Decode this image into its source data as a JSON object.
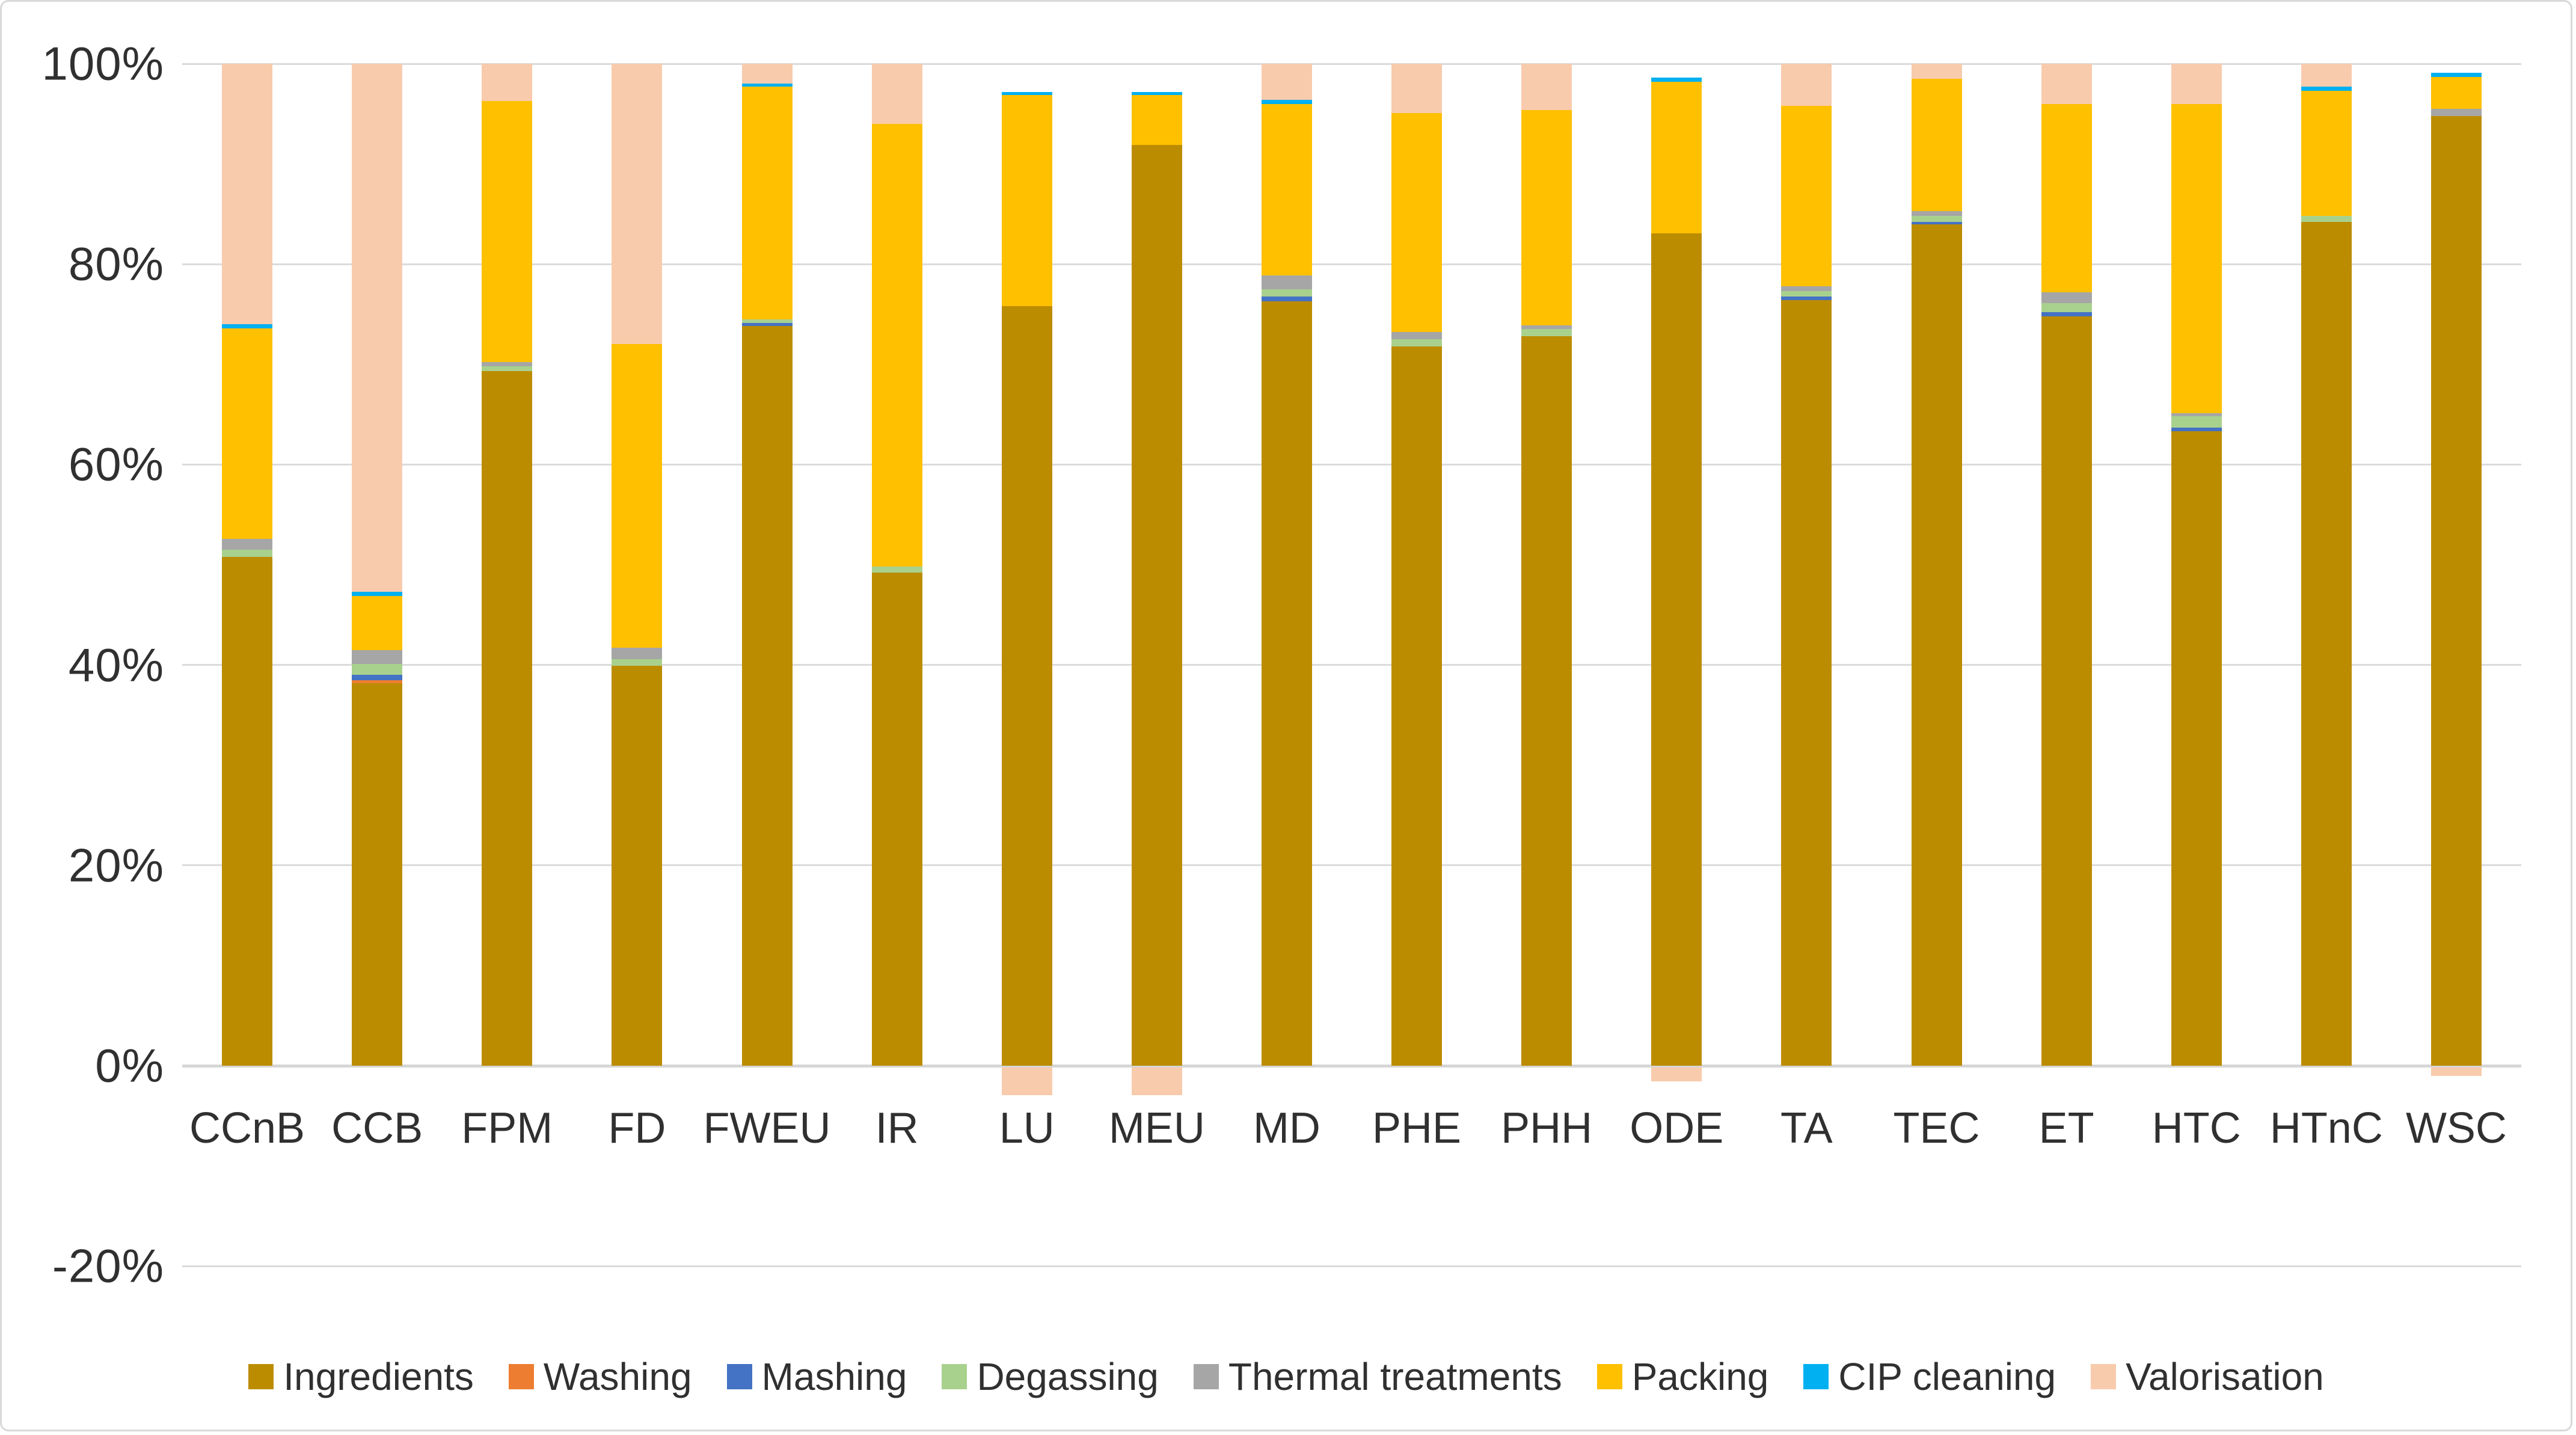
{
  "chart_data": {
    "type": "bar",
    "subtype": "100-percent-stacked-column",
    "title": "",
    "xlabel": "",
    "ylabel": "",
    "grid": true,
    "legend_position": "bottom",
    "categories": [
      "CCnB",
      "CCB",
      "FPM",
      "FD",
      "FWEU",
      "IR",
      "LU",
      "MEU",
      "MD",
      "PHE",
      "PHH",
      "ODE",
      "TA",
      "TEC",
      "ET",
      "HTC",
      "HTnC",
      "WSC"
    ],
    "series": [
      {
        "name": "Ingredients",
        "color": "#BC8C00",
        "values": [
          50.8,
          38.2,
          69.3,
          39.9,
          73.8,
          49.2,
          75.8,
          91.9,
          76.3,
          71.8,
          72.8,
          83.1,
          76.4,
          84.0,
          74.8,
          63.3,
          84.2,
          94.8
        ]
      },
      {
        "name": "Washing",
        "color": "#ED7D31",
        "values": [
          0,
          0.3,
          0,
          0,
          0,
          0,
          0,
          0,
          0,
          0,
          0,
          0,
          0,
          0,
          0,
          0,
          0,
          0
        ]
      },
      {
        "name": "Mashing",
        "color": "#4472C4",
        "values": [
          0,
          0.5,
          0,
          0,
          0.3,
          0,
          0,
          0,
          0.5,
          0,
          0,
          0,
          0.4,
          0.2,
          0.4,
          0.4,
          0,
          0
        ]
      },
      {
        "name": "Degassing",
        "color": "#A9D18E",
        "values": [
          0.7,
          1.1,
          0.5,
          0.7,
          0.4,
          0.6,
          0,
          0,
          0.7,
          0.7,
          0.7,
          0,
          0.5,
          0.6,
          0.9,
          1.1,
          0.6,
          0
        ]
      },
      {
        "name": "Thermal treatments",
        "color": "#A6A6A6",
        "values": [
          1.1,
          1.4,
          0.4,
          1.1,
          0,
          0,
          0,
          0,
          1.4,
          0.7,
          0.4,
          0,
          0.5,
          0.5,
          1.1,
          0.3,
          0,
          0.7
        ]
      },
      {
        "name": "Packing",
        "color": "#FFC000",
        "values": [
          21.0,
          5.4,
          26.1,
          30.3,
          23.2,
          44.2,
          21.1,
          5.0,
          17.1,
          21.9,
          21.5,
          15.1,
          18.0,
          13.2,
          18.8,
          30.9,
          12.5,
          3.2
        ]
      },
      {
        "name": "CIP cleaning",
        "color": "#00B0F0",
        "values": [
          0.4,
          0.4,
          0,
          0,
          0.3,
          0,
          0.3,
          0.3,
          0.4,
          0,
          0,
          0.4,
          0,
          0,
          0,
          0,
          0.4,
          0.4
        ]
      },
      {
        "name": "Valorisation",
        "color": "#F8CBAD",
        "values": [
          26.0,
          52.7,
          3.7,
          28.0,
          2.0,
          6.0,
          -2.8,
          -2.8,
          3.6,
          4.9,
          4.6,
          -1.4,
          4.2,
          1.5,
          4.0,
          4.0,
          2.3,
          -0.9
        ]
      }
    ],
    "y_axis": {
      "unit": "%",
      "ylim": [
        -20,
        100
      ],
      "ticks": [
        100,
        80,
        60,
        40,
        20,
        0,
        -20
      ],
      "tick_labels": [
        "100%",
        "80%",
        "60%",
        "40%",
        "20%",
        "0%",
        "-20%"
      ]
    }
  }
}
